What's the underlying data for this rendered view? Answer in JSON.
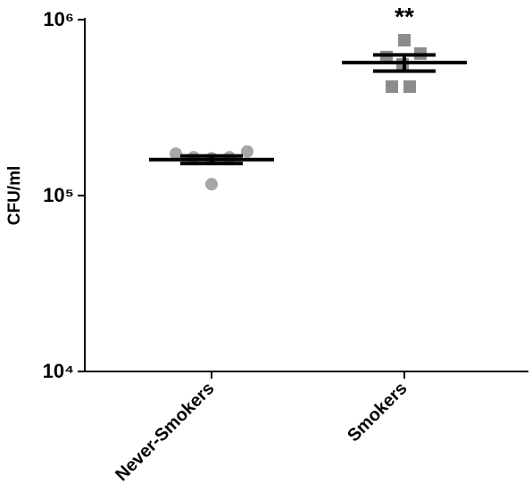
{
  "chart_data": {
    "type": "scatter",
    "y_label": "CFU/ml",
    "annotation": "**",
    "categories": [
      "Never-Smokers",
      "Smokers"
    ],
    "log_y": true,
    "ylim": [
      10000,
      1000000
    ],
    "yticks": [
      {
        "value": 10000,
        "label": "10⁴"
      },
      {
        "value": 100000,
        "label": "10⁵"
      },
      {
        "value": 1000000,
        "label": "10⁶"
      }
    ],
    "groups": [
      {
        "marker": "circle",
        "color": "#a6a6a6",
        "values": [
          173000,
          165000,
          163000,
          165000,
          178000,
          116000
        ],
        "mean": 160000,
        "sem": 8000
      },
      {
        "marker": "square",
        "color": "#8c8c8c",
        "values": [
          764000,
          613000,
          641000,
          557000,
          416000,
          416000
        ],
        "mean": 570000,
        "sem": 60000
      }
    ]
  }
}
